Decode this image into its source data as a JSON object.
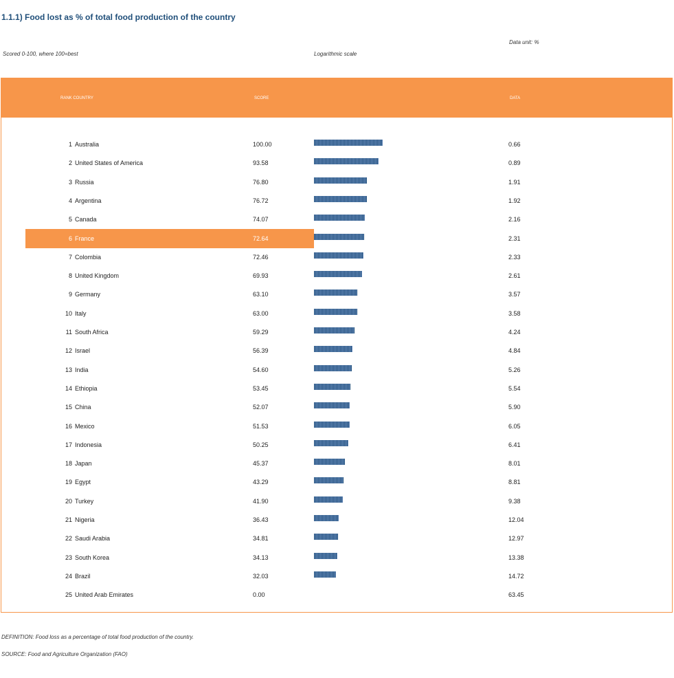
{
  "title": "1.1.1) Food lost as % of total food production of the country",
  "data_unit": "Data unit: %",
  "scored_note": "Scored 0-100, where 100=best",
  "scale_note": "Logarithmic scale",
  "headers": {
    "rank_country": "RANK COUNTRY",
    "score": "SCORE",
    "data": "DATA"
  },
  "footer": {
    "definition": "DEFINITION: Food loss as a percentage of total food production of the country.",
    "source": "SOURCE: Food and Agriculture Organization (FAO)"
  },
  "colors": {
    "accent": "#f7964a",
    "bar": "#1f4e79",
    "title": "#1f4e79"
  },
  "chart_data": {
    "type": "bar",
    "orientation": "horizontal",
    "score_max": 100,
    "highlight_rank": 6,
    "rows": [
      {
        "rank": "1",
        "country": "Australia",
        "score": "100.00",
        "data": "0.66"
      },
      {
        "rank": "2",
        "country": "United States of America",
        "score": "93.58",
        "data": "0.89"
      },
      {
        "rank": "3",
        "country": "Russia",
        "score": "76.80",
        "data": "1.91"
      },
      {
        "rank": "4",
        "country": "Argentina",
        "score": "76.72",
        "data": "1.92"
      },
      {
        "rank": "5",
        "country": "Canada",
        "score": "74.07",
        "data": "2.16"
      },
      {
        "rank": "6",
        "country": "France",
        "score": "72.64",
        "data": "2.31"
      },
      {
        "rank": "7",
        "country": "Colombia",
        "score": "72.46",
        "data": "2.33"
      },
      {
        "rank": "8",
        "country": "United Kingdom",
        "score": "69.93",
        "data": "2.61"
      },
      {
        "rank": "9",
        "country": "Germany",
        "score": "63.10",
        "data": "3.57"
      },
      {
        "rank": "10",
        "country": "Italy",
        "score": "63.00",
        "data": "3.58"
      },
      {
        "rank": "11",
        "country": "South Africa",
        "score": "59.29",
        "data": "4.24"
      },
      {
        "rank": "12",
        "country": "Israel",
        "score": "56.39",
        "data": "4.84"
      },
      {
        "rank": "13",
        "country": "India",
        "score": "54.60",
        "data": "5.26"
      },
      {
        "rank": "14",
        "country": "Ethiopia",
        "score": "53.45",
        "data": "5.54"
      },
      {
        "rank": "15",
        "country": "China",
        "score": "52.07",
        "data": "5.90"
      },
      {
        "rank": "16",
        "country": "Mexico",
        "score": "51.53",
        "data": "6.05"
      },
      {
        "rank": "17",
        "country": "Indonesia",
        "score": "50.25",
        "data": "6.41"
      },
      {
        "rank": "18",
        "country": "Japan",
        "score": "45.37",
        "data": "8.01"
      },
      {
        "rank": "19",
        "country": "Egypt",
        "score": "43.29",
        "data": "8.81"
      },
      {
        "rank": "20",
        "country": "Turkey",
        "score": "41.90",
        "data": "9.38"
      },
      {
        "rank": "21",
        "country": "Nigeria",
        "score": "36.43",
        "data": "12.04"
      },
      {
        "rank": "22",
        "country": "Saudi Arabia",
        "score": "34.81",
        "data": "12.97"
      },
      {
        "rank": "23",
        "country": "South Korea",
        "score": "34.13",
        "data": "13.38"
      },
      {
        "rank": "24",
        "country": "Brazil",
        "score": "32.03",
        "data": "14.72"
      },
      {
        "rank": "25",
        "country": "United Arab Emirates",
        "score": "0.00",
        "data": "63.45"
      }
    ]
  }
}
